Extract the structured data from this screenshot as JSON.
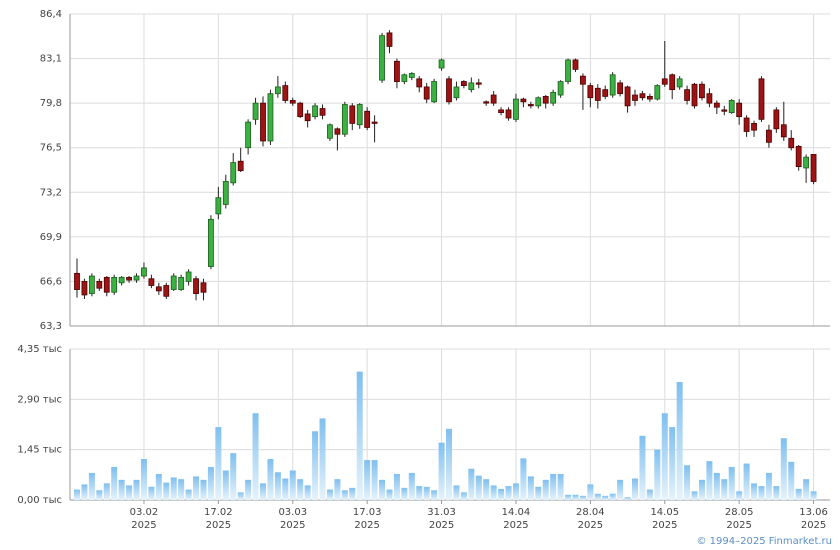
{
  "chart_data": [
    {
      "type": "candlestick",
      "open": [
        67.2,
        66.6,
        65.7,
        66.6,
        66.9,
        65.8,
        66.5,
        66.9,
        66.7,
        67.0,
        66.8,
        66.2,
        66.3,
        66.0,
        66.0,
        66.6,
        66.8,
        66.5,
        67.7,
        71.6,
        72.3,
        73.9,
        75.5,
        76.5,
        78.6,
        79.8,
        77.0,
        80.5,
        81.1,
        80.0,
        79.8,
        79.0,
        78.8,
        79.4,
        77.2,
        77.9,
        77.5,
        79.6,
        78.2,
        79.2,
        78.4,
        81.5,
        85.0,
        82.9,
        81.4,
        81.7,
        81.6,
        81.0,
        79.9,
        82.4,
        81.6,
        80.2,
        81.4,
        80.8,
        81.3,
        79.9,
        80.4,
        79.3,
        79.3,
        78.6,
        80.1,
        79.7,
        79.6,
        80.3,
        79.8,
        80.4,
        81.4,
        83.0,
        81.8,
        81.1,
        80.9,
        80.8,
        80.4,
        81.3,
        81.0,
        80.4,
        80.5,
        80.3,
        80.1,
        81.6,
        81.9,
        81.0,
        80.8,
        81.2,
        81.2,
        80.5,
        79.8,
        79.3,
        79.1,
        79.8,
        78.7,
        78.3,
        81.6,
        77.8,
        79.3,
        78.2,
        77.2,
        76.6,
        75.0,
        76.0
      ],
      "high": [
        68.3,
        66.8,
        67.2,
        66.8,
        67.0,
        67.1,
        67.0,
        67.0,
        67.2,
        68.0,
        67.1,
        66.5,
        66.5,
        67.2,
        67.1,
        67.5,
        67.0,
        66.8,
        71.5,
        73.6,
        74.5,
        76.1,
        76.5,
        78.6,
        80.2,
        80.3,
        80.8,
        81.8,
        81.4,
        80.2,
        79.9,
        79.3,
        79.8,
        79.7,
        78.3,
        78.0,
        79.9,
        79.8,
        79.8,
        79.5,
        78.9,
        85.0,
        85.2,
        83.1,
        82.0,
        82.1,
        81.8,
        81.3,
        81.6,
        83.1,
        81.8,
        81.4,
        81.5,
        81.7,
        81.6,
        80.0,
        80.7,
        79.5,
        79.5,
        80.5,
        80.2,
        79.9,
        80.3,
        80.4,
        80.8,
        81.5,
        83.1,
        83.1,
        82.0,
        81.3,
        81.2,
        81.1,
        82.1,
        81.5,
        81.1,
        80.8,
        80.7,
        80.5,
        81.2,
        84.4,
        82.0,
        81.8,
        81.1,
        81.3,
        81.4,
        80.9,
        80.0,
        79.6,
        80.1,
        80.1,
        78.9,
        78.5,
        81.8,
        78.2,
        79.5,
        79.9,
        77.8,
        76.7,
        76.0,
        76.0
      ],
      "low": [
        65.4,
        65.3,
        65.5,
        65.9,
        65.5,
        65.6,
        66.3,
        66.5,
        66.5,
        66.8,
        66.1,
        65.6,
        65.3,
        65.9,
        65.9,
        66.3,
        65.2,
        65.2,
        67.5,
        71.2,
        72.0,
        73.7,
        74.7,
        76.0,
        78.2,
        76.6,
        76.7,
        80.2,
        79.8,
        79.6,
        78.7,
        78.0,
        78.6,
        78.6,
        77.0,
        76.3,
        77.3,
        77.8,
        77.9,
        77.8,
        76.9,
        81.3,
        83.5,
        80.9,
        81.2,
        81.5,
        80.6,
        79.8,
        79.8,
        82.2,
        79.7,
        80.0,
        80.9,
        80.6,
        80.9,
        79.6,
        79.6,
        78.9,
        78.5,
        78.4,
        79.5,
        79.4,
        79.4,
        79.4,
        79.6,
        80.2,
        81.2,
        82.1,
        79.3,
        79.5,
        79.4,
        80.1,
        80.2,
        80.3,
        79.1,
        79.6,
        80.0,
        79.9,
        80.0,
        81.0,
        80.1,
        80.8,
        79.7,
        79.4,
        80.0,
        79.5,
        79.0,
        78.9,
        79.0,
        78.2,
        77.3,
        77.3,
        78.4,
        76.5,
        77.6,
        77.0,
        76.3,
        74.8,
        73.9,
        73.8
      ],
      "close": [
        66.0,
        65.6,
        67.0,
        66.1,
        65.8,
        66.9,
        66.9,
        66.7,
        67.0,
        67.6,
        66.3,
        65.9,
        65.5,
        67.0,
        66.9,
        67.3,
        65.7,
        65.8,
        71.2,
        72.8,
        74.0,
        75.4,
        74.8,
        78.4,
        79.8,
        77.0,
        80.5,
        81.0,
        80.0,
        79.8,
        78.8,
        78.5,
        79.6,
        78.9,
        78.2,
        77.5,
        79.7,
        78.3,
        79.7,
        78.0,
        78.3,
        84.8,
        84.0,
        81.4,
        81.9,
        82.0,
        81.0,
        80.1,
        81.4,
        83.0,
        79.9,
        81.0,
        81.1,
        81.3,
        81.2,
        79.8,
        79.8,
        79.1,
        78.7,
        80.1,
        79.9,
        79.6,
        80.2,
        79.8,
        80.6,
        81.4,
        83.0,
        82.3,
        81.2,
        80.2,
        80.0,
        80.3,
        81.9,
        80.5,
        79.6,
        80.0,
        80.2,
        80.1,
        81.1,
        81.2,
        80.8,
        81.6,
        80.0,
        79.6,
        80.2,
        79.8,
        79.5,
        79.2,
        80.0,
        78.8,
        77.7,
        77.8,
        78.6,
        76.9,
        77.9,
        77.3,
        76.5,
        75.1,
        75.8,
        74.0
      ],
      "up_color": "#3cb043",
      "down_color": "#9e1414",
      "ylim": [
        63.3,
        86.4
      ],
      "yticks": [
        {
          "value": 63.3,
          "label": "63,3"
        },
        {
          "value": 66.6,
          "label": "66,6"
        },
        {
          "value": 69.9,
          "label": "69,9"
        },
        {
          "value": 73.2,
          "label": "73,2"
        },
        {
          "value": 76.5,
          "label": "76,5"
        },
        {
          "value": 79.8,
          "label": "79,8"
        },
        {
          "value": 83.1,
          "label": "83,1"
        },
        {
          "value": 86.4,
          "label": "86,4"
        }
      ],
      "grid": true
    },
    {
      "type": "bar",
      "values": [
        0.3,
        0.45,
        0.78,
        0.28,
        0.48,
        0.95,
        0.58,
        0.42,
        0.58,
        1.18,
        0.38,
        0.75,
        0.5,
        0.65,
        0.6,
        0.3,
        0.68,
        0.58,
        0.95,
        2.1,
        0.85,
        1.35,
        0.22,
        0.58,
        2.5,
        0.48,
        1.18,
        0.8,
        0.62,
        0.85,
        0.6,
        0.42,
        1.98,
        2.35,
        0.3,
        0.6,
        0.28,
        0.35,
        3.7,
        1.15,
        1.15,
        0.58,
        0.3,
        0.75,
        0.35,
        0.78,
        0.4,
        0.38,
        0.28,
        1.65,
        2.05,
        0.42,
        0.22,
        0.9,
        0.7,
        0.6,
        0.42,
        0.32,
        0.4,
        0.48,
        1.2,
        0.68,
        0.38,
        0.58,
        0.75,
        0.75,
        0.15,
        0.15,
        0.12,
        0.45,
        0.18,
        0.12,
        0.18,
        0.58,
        0.08,
        0.62,
        1.85,
        0.3,
        1.45,
        2.5,
        2.1,
        3.4,
        1.0,
        0.25,
        0.58,
        1.12,
        0.78,
        0.6,
        0.95,
        0.25,
        1.05,
        0.48,
        0.4,
        0.78,
        0.4,
        1.78,
        1.1,
        0.32,
        0.6,
        0.25
      ],
      "categories": [
        null,
        null,
        null,
        null,
        null,
        null,
        null,
        null,
        null,
        "03.02\n2025",
        null,
        null,
        null,
        null,
        null,
        null,
        null,
        null,
        null,
        "17.02\n2025",
        null,
        null,
        null,
        null,
        null,
        null,
        null,
        null,
        null,
        "03.03\n2025",
        null,
        null,
        null,
        null,
        null,
        null,
        null,
        null,
        null,
        "17.03\n2025",
        null,
        null,
        null,
        null,
        null,
        null,
        null,
        null,
        null,
        "31.03\n2025",
        null,
        null,
        null,
        null,
        null,
        null,
        null,
        null,
        null,
        "14.04\n2025",
        null,
        null,
        null,
        null,
        null,
        null,
        null,
        null,
        null,
        "28.04\n2025",
        null,
        null,
        null,
        null,
        null,
        null,
        null,
        null,
        null,
        "14.05\n2025",
        null,
        null,
        null,
        null,
        null,
        null,
        null,
        null,
        null,
        "28.05\n2025",
        null,
        null,
        null,
        null,
        null,
        null,
        null,
        null,
        null,
        "13.06\n2025"
      ],
      "color": "#7fbfef",
      "ylim": [
        0,
        4.35
      ],
      "yticks": [
        {
          "value": 0,
          "label": "0,00 тыс"
        },
        {
          "value": 1.45,
          "label": "1,45 тыс"
        },
        {
          "value": 2.9,
          "label": "2,90 тыс"
        },
        {
          "value": 4.35,
          "label": "4,35 тыс"
        }
      ],
      "grid": true
    }
  ],
  "credit": "© 1994–2025 Finmarket.ru"
}
